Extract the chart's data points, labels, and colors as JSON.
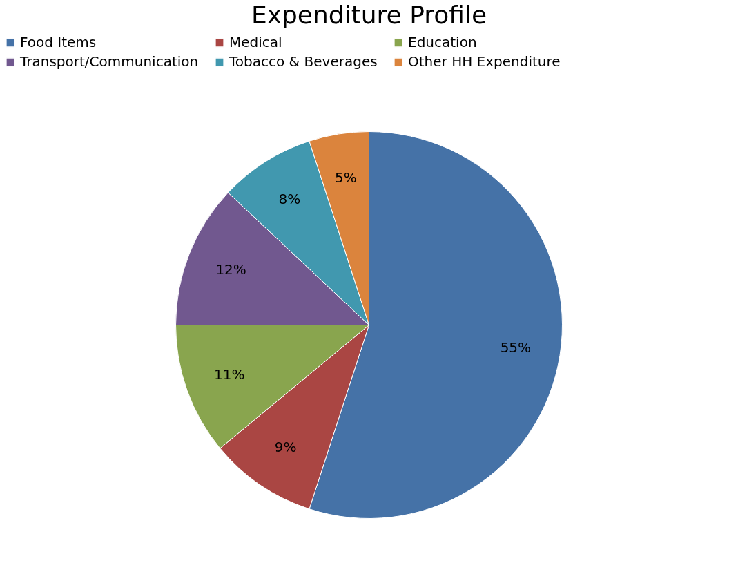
{
  "chart_data": {
    "type": "pie",
    "title": "Expenditure Profile",
    "categories": [
      "Food Items",
      "Medical",
      "Education",
      "Transport/Communication",
      "Tobacco & Beverages",
      "Other HH Expenditure"
    ],
    "values": [
      55,
      9,
      11,
      12,
      8,
      5
    ],
    "value_labels": [
      "55%",
      "9%",
      "11%",
      "12%",
      "8%",
      "5%"
    ],
    "colors": [
      "#4572a7",
      "#aa4643",
      "#89a54e",
      "#71588f",
      "#4198af",
      "#db843d"
    ],
    "legend": "top"
  }
}
